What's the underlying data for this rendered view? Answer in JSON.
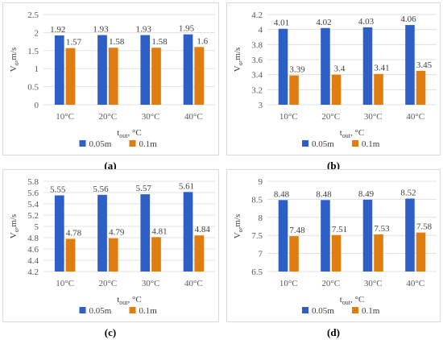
{
  "legend": [
    "0.05m",
    "0.1m"
  ],
  "colors": {
    "series1": "#2e5fc7",
    "series2": "#e07d10",
    "grid": "#d9d9d9"
  },
  "chart_data": [
    {
      "type": "bar",
      "caption": "(a)",
      "categories": [
        "10°C",
        "20°C",
        "30°C",
        "40°C"
      ],
      "series": [
        {
          "name": "0.05m",
          "values": [
            1.92,
            1.93,
            1.93,
            1.95
          ]
        },
        {
          "name": "0.1m",
          "values": [
            1.57,
            1.58,
            1.58,
            1.6
          ]
        }
      ],
      "data_labels": [
        [
          "1.92",
          "1.93",
          "1.93",
          "1.95"
        ],
        [
          "1.57",
          "1.58",
          "1.58",
          "1.6"
        ]
      ],
      "yticks": [
        "0",
        "0.5",
        "1",
        "1.5",
        "2",
        "2.5"
      ],
      "ylim": [
        0,
        2.5
      ],
      "ylabel": {
        "main": "V",
        "sub": "o",
        "rest": ",m/s"
      },
      "xlabel": {
        "main": "t",
        "sub": "out",
        "rest": ", °C"
      },
      "grid": true,
      "legend_position": "bottom"
    },
    {
      "type": "bar",
      "caption": "(b)",
      "categories": [
        "10°C",
        "20°C",
        "30°C",
        "40°C"
      ],
      "series": [
        {
          "name": "0.05m",
          "values": [
            4.01,
            4.02,
            4.03,
            4.06
          ]
        },
        {
          "name": "0.1m",
          "values": [
            3.39,
            3.4,
            3.41,
            3.45
          ]
        }
      ],
      "data_labels": [
        [
          "4.01",
          "4.02",
          "4.03",
          "4.06"
        ],
        [
          "3.39",
          "3.4",
          "3.41",
          "3.45"
        ]
      ],
      "yticks": [
        "3",
        "3.2",
        "3.4",
        "3.6",
        "3.8",
        "4",
        "4.2"
      ],
      "ylim": [
        3,
        4.2
      ],
      "ylabel": {
        "main": "V",
        "sub": "o",
        "rest": ",m/s"
      },
      "xlabel": {
        "main": "t",
        "sub": "out",
        "rest": ", °C"
      },
      "grid": true,
      "legend_position": "bottom"
    },
    {
      "type": "bar",
      "caption": "(c)",
      "categories": [
        "10°C",
        "20°C",
        "30°C",
        "40°C"
      ],
      "series": [
        {
          "name": "0.05m",
          "values": [
            5.55,
            5.56,
            5.57,
            5.61
          ]
        },
        {
          "name": "0.1m",
          "values": [
            4.78,
            4.79,
            4.81,
            4.84
          ]
        }
      ],
      "data_labels": [
        [
          "5.55",
          "5.56",
          "5.57",
          "5.61"
        ],
        [
          "4.78",
          "4.79",
          "4.81",
          "4.84"
        ]
      ],
      "yticks": [
        "4.2",
        "4.4",
        "4.6",
        "4.8",
        "5",
        "5.2",
        "5.4",
        "5.6",
        "5.8"
      ],
      "ylim": [
        4.2,
        5.8
      ],
      "ylabel": {
        "main": "V",
        "sub": "o",
        "rest": ",m/s"
      },
      "xlabel": {
        "main": "t",
        "sub": "out",
        "rest": ", °C"
      },
      "grid": true,
      "legend_position": "bottom"
    },
    {
      "type": "bar",
      "caption": "(d)",
      "categories": [
        "10°C",
        "20°C",
        "30°C",
        "40°C"
      ],
      "series": [
        {
          "name": "0.05m",
          "values": [
            8.48,
            8.48,
            8.49,
            8.52
          ]
        },
        {
          "name": "0.1m",
          "values": [
            7.48,
            7.51,
            7.53,
            7.58
          ]
        }
      ],
      "data_labels": [
        [
          "8.48",
          "8.48",
          "8.49",
          "8.52"
        ],
        [
          "7.48",
          "7.51",
          "7.53",
          "7.58"
        ]
      ],
      "yticks": [
        "6.5",
        "7",
        "7.5",
        "8",
        "8.5",
        "9"
      ],
      "ylim": [
        6.5,
        9
      ],
      "ylabel": {
        "main": "V",
        "sub": "o",
        "rest": ",m/s"
      },
      "xlabel": {
        "main": "t",
        "sub": "out",
        "rest": ", °C"
      },
      "grid": true,
      "legend_position": "bottom"
    }
  ]
}
